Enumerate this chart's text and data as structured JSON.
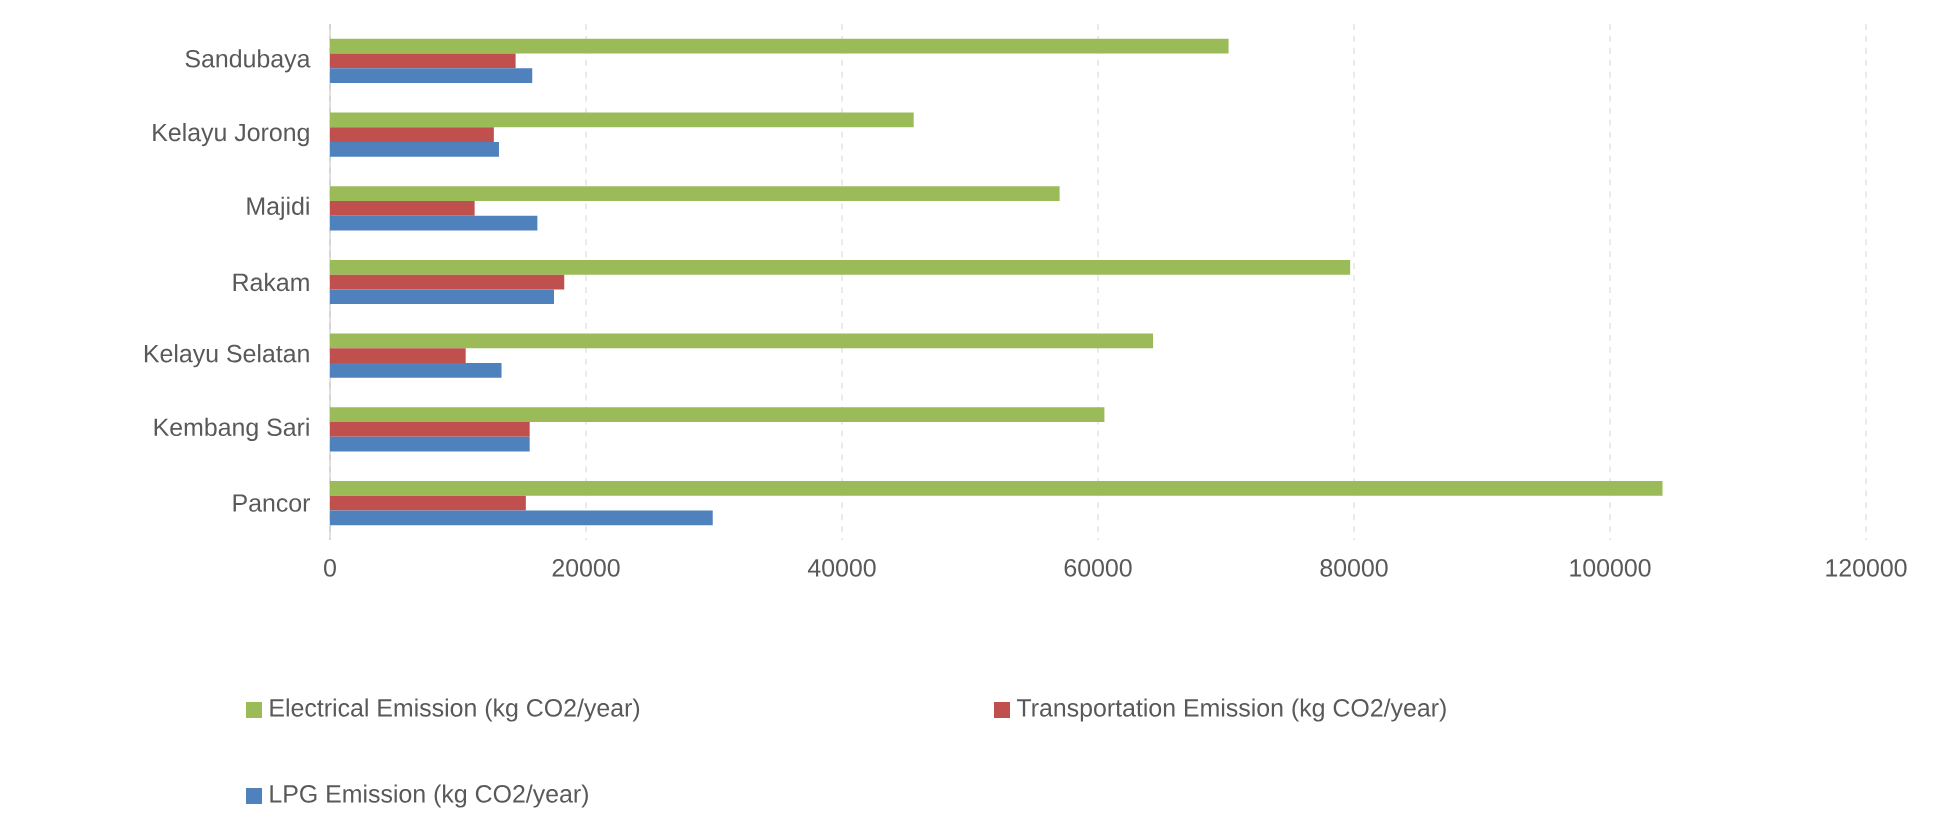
{
  "chart_data": {
    "type": "bar",
    "orientation": "horizontal",
    "categories": [
      "Sandubaya",
      "Kelayu Jorong",
      "Majidi",
      "Rakam",
      "Kelayu Selatan",
      "Kembang Sari",
      "Pancor"
    ],
    "series": [
      {
        "name": "Electrical Emission (kg CO2/year)",
        "color": "#9bbb59",
        "values": [
          70200,
          45600,
          57000,
          79700,
          64300,
          60500,
          104100
        ]
      },
      {
        "name": "Transportation Emission (kg CO2/year)",
        "color": "#c0504d",
        "values": [
          14500,
          12800,
          11300,
          18300,
          10600,
          15600,
          15300
        ]
      },
      {
        "name": "LPG Emission (kg CO2/year)",
        "color": "#4f81bd",
        "values": [
          15800,
          13200,
          16200,
          17500,
          13400,
          15600,
          29900
        ]
      }
    ],
    "xlim": [
      0,
      120000
    ],
    "xticks": [
      0,
      20000,
      40000,
      60000,
      80000,
      100000,
      120000
    ],
    "grid": "x",
    "legend": "bottom"
  }
}
